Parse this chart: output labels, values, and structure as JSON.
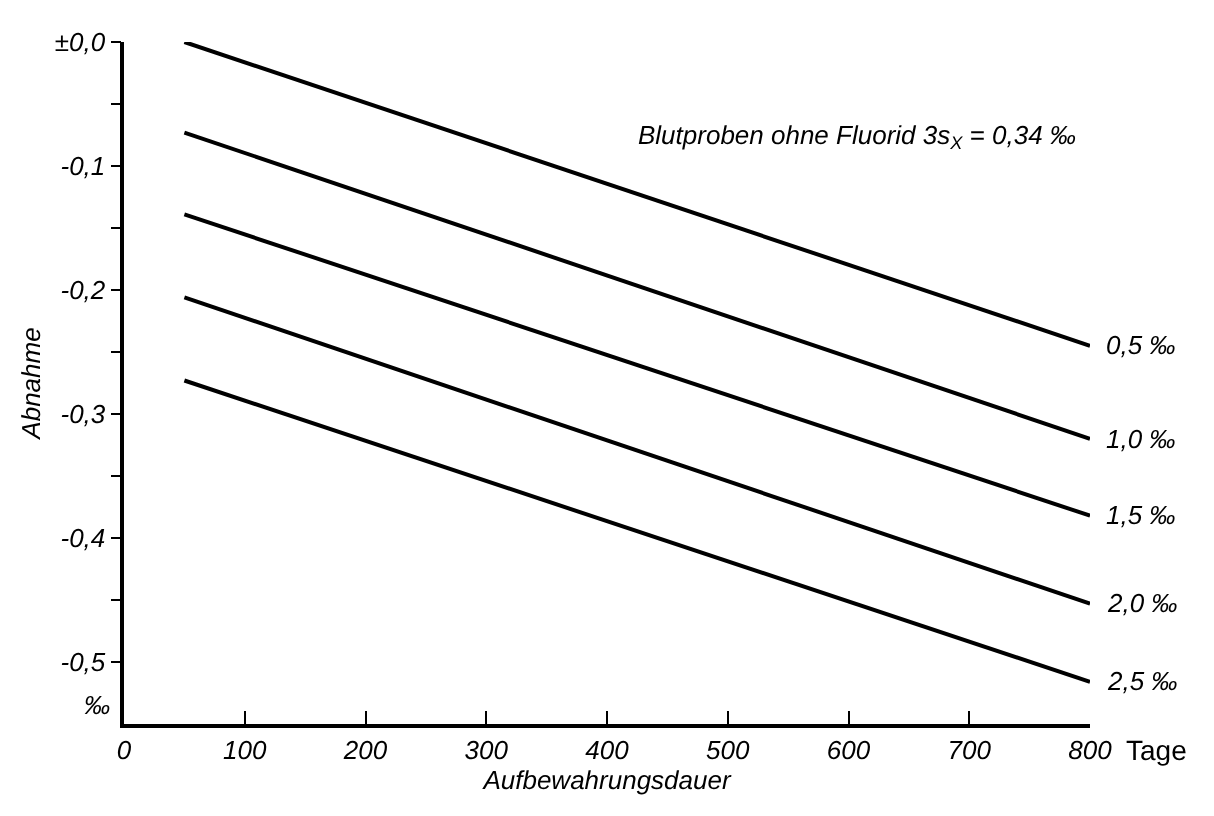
{
  "chart_data": {
    "type": "line",
    "xlabel": "Aufbewahrungsdauer",
    "ylabel": "Abnahme",
    "x": [
      50,
      800
    ],
    "series": [
      {
        "name": "0,5 ‰",
        "color": "#000000",
        "values": [
          0.0,
          -0.245
        ]
      },
      {
        "name": "1,0 ‰",
        "color": "#000000",
        "values": [
          -0.073,
          -0.32
        ]
      },
      {
        "name": "1,5 ‰",
        "color": "#000000",
        "values": [
          -0.139,
          -0.382
        ]
      },
      {
        "name": "2,0 ‰",
        "color": "#000000",
        "values": [
          -0.206,
          -0.453
        ]
      },
      {
        "name": "2,5 ‰",
        "color": "#000000",
        "values": [
          -0.273,
          -0.516
        ]
      }
    ],
    "xlim": [
      0,
      800
    ],
    "ylim": [
      -0.55,
      0.0
    ],
    "xticks": [
      0,
      100,
      200,
      300,
      400,
      500,
      600,
      700,
      800
    ],
    "yticks": [
      {
        "value": 0.0,
        "label": "±0,0"
      },
      {
        "value": -0.05,
        "label": null
      },
      {
        "value": -0.1,
        "label": "-0,1"
      },
      {
        "value": -0.15,
        "label": null
      },
      {
        "value": -0.2,
        "label": "-0,2"
      },
      {
        "value": -0.25,
        "label": null
      },
      {
        "value": -0.3,
        "label": "-0,3"
      },
      {
        "value": -0.35,
        "label": null
      },
      {
        "value": -0.4,
        "label": "-0,4"
      },
      {
        "value": -0.45,
        "label": null
      },
      {
        "value": -0.5,
        "label": "-0,5"
      }
    ],
    "annotations": [
      "Blutproben ohne Fluorid 3s$_{X}$ = 0,34 ‰",
      "‰",
      "Tage"
    ],
    "legend": false,
    "marker": "none",
    "line_style": "solid"
  }
}
